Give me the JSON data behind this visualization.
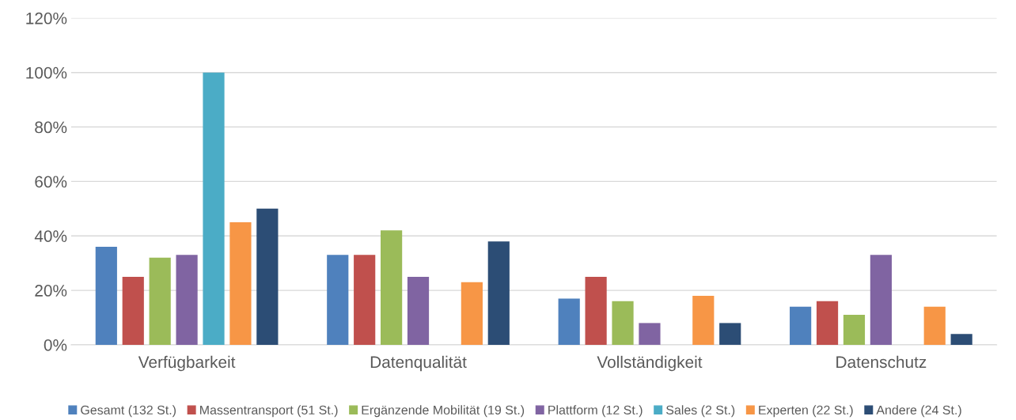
{
  "chart_data": {
    "type": "bar",
    "categories": [
      "Verfügbarkeit",
      "Datenqualität",
      "Vollständigkeit",
      "Datenschutz"
    ],
    "series": [
      {
        "name": "Gesamt (132 St.)",
        "color": "#4f81bd",
        "values": [
          36,
          33,
          17,
          14
        ]
      },
      {
        "name": "Massentransport (51 St.)",
        "color": "#c0504d",
        "values": [
          25,
          33,
          25,
          16
        ]
      },
      {
        "name": "Ergänzende Mobilität (19 St.)",
        "color": "#9bbb59",
        "values": [
          32,
          42,
          16,
          11
        ]
      },
      {
        "name": "Plattform (12 St.)",
        "color": "#8064a2",
        "values": [
          33,
          25,
          8,
          33
        ]
      },
      {
        "name": "Sales (2 St.)",
        "color": "#4bacc6",
        "values": [
          100,
          0,
          0,
          0
        ]
      },
      {
        "name": "Experten (22 St.)",
        "color": "#f79646",
        "values": [
          45,
          23,
          18,
          14
        ]
      },
      {
        "name": "Andere (24 St.)",
        "color": "#2c4d75",
        "values": [
          50,
          38,
          8,
          4
        ]
      }
    ],
    "ylim": [
      0,
      120
    ],
    "yticks": [
      {
        "value": 0,
        "label": "0%"
      },
      {
        "value": 20,
        "label": "20%"
      },
      {
        "value": 40,
        "label": "40%"
      },
      {
        "value": 60,
        "label": "60%"
      },
      {
        "value": 80,
        "label": "80%"
      },
      {
        "value": 100,
        "label": "100%"
      },
      {
        "value": 120,
        "label": "120%"
      }
    ],
    "grid": "y",
    "legend": "bottom"
  }
}
